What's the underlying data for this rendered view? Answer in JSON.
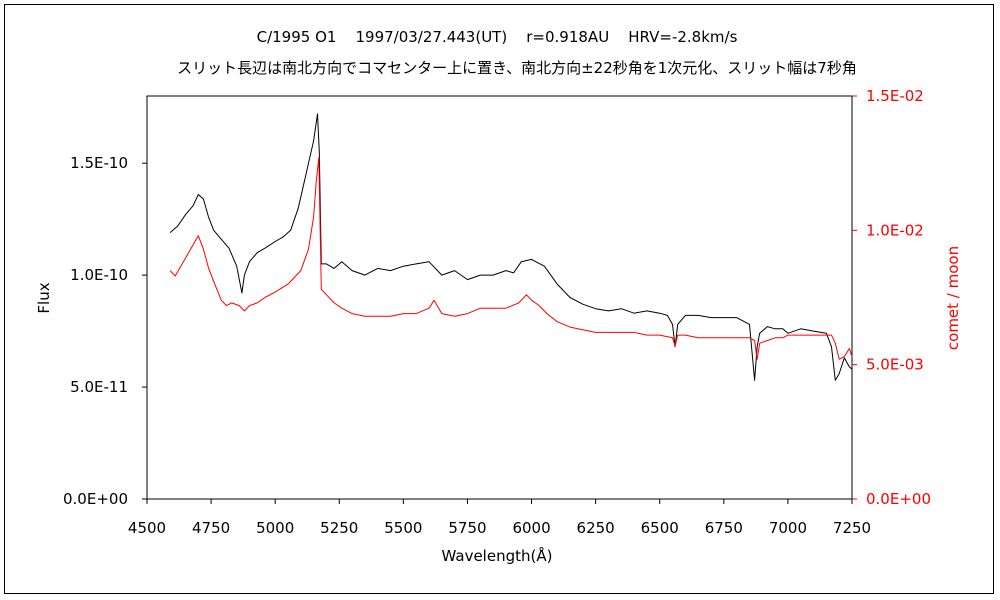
{
  "chart_data": {
    "type": "line",
    "title": "C/1995 O1    1997/03/27.443(UT)    r=0.918AU    HRV=-2.8km/s",
    "subtitle": "スリット長辺は南北方向でコマセンター上に置き、南北方向±22秒角を1次元化、スリット幅は7秒角",
    "xlabel": "Wavelength(Å)",
    "ylabel": "Flux",
    "y2label": "comet / moon",
    "xlim": [
      4500,
      7250
    ],
    "ylim": [
      0,
      1.8e-10
    ],
    "y2lim": [
      0,
      0.015
    ],
    "xticks": [
      "4500",
      "4750",
      "5000",
      "5250",
      "5500",
      "5750",
      "6000",
      "6250",
      "6500",
      "6750",
      "7000",
      "7250"
    ],
    "yticks": [
      "0.0E+00",
      "5.0E-11",
      "1.0E-10",
      "1.5E-10"
    ],
    "y2ticks": [
      "0.0E+00",
      "5.0E-03",
      "1.0E-02",
      "1.5E-02"
    ],
    "grid": false,
    "series": [
      {
        "axis": "left",
        "color": "#000000",
        "x": [
          4590,
          4620,
          4650,
          4680,
          4700,
          4720,
          4740,
          4760,
          4790,
          4820,
          4850,
          4870,
          4880,
          4900,
          4930,
          4960,
          5000,
          5030,
          5060,
          5090,
          5110,
          5130,
          5150,
          5165,
          5172,
          5180,
          5200,
          5230,
          5260,
          5300,
          5350,
          5400,
          5450,
          5500,
          5550,
          5600,
          5650,
          5700,
          5750,
          5800,
          5850,
          5900,
          5930,
          5960,
          6000,
          6050,
          6100,
          6150,
          6200,
          6250,
          6300,
          6350,
          6400,
          6450,
          6500,
          6530,
          6550,
          6560,
          6570,
          6600,
          6650,
          6700,
          6750,
          6800,
          6850,
          6870,
          6880,
          6890,
          6920,
          6950,
          6980,
          7000,
          7050,
          7100,
          7150,
          7170,
          7185,
          7200,
          7220,
          7240,
          7250
        ],
        "y": [
          1.19e-10,
          1.22e-10,
          1.27e-10,
          1.31e-10,
          1.36e-10,
          1.34e-10,
          1.26e-10,
          1.2e-10,
          1.16e-10,
          1.12e-10,
          1.04e-10,
          9.2e-11,
          1e-10,
          1.06e-10,
          1.1e-10,
          1.12e-10,
          1.15e-10,
          1.17e-10,
          1.2e-10,
          1.3e-10,
          1.4e-10,
          1.5e-10,
          1.6e-10,
          1.72e-10,
          1.55e-10,
          1.05e-10,
          1.05e-10,
          1.03e-10,
          1.06e-10,
          1.02e-10,
          1e-10,
          1.03e-10,
          1.02e-10,
          1.04e-10,
          1.05e-10,
          1.06e-10,
          1e-10,
          1.02e-10,
          9.8e-11,
          1e-10,
          1e-10,
          1.02e-10,
          1.01e-10,
          1.06e-10,
          1.07e-10,
          1.04e-10,
          9.6e-11,
          9e-11,
          8.7e-11,
          8.5e-11,
          8.4e-11,
          8.5e-11,
          8.3e-11,
          8.4e-11,
          8.3e-11,
          8.2e-11,
          7.8e-11,
          6.8e-11,
          7.8e-11,
          8.2e-11,
          8.2e-11,
          8.1e-11,
          8.1e-11,
          8.1e-11,
          7.8e-11,
          5.3e-11,
          6.8e-11,
          7.4e-11,
          7.7e-11,
          7.6e-11,
          7.6e-11,
          7.4e-11,
          7.6e-11,
          7.5e-11,
          7.4e-11,
          6.8e-11,
          5.3e-11,
          5.6e-11,
          6.3e-11,
          5.9e-11,
          5.8e-11
        ]
      },
      {
        "axis": "right",
        "color": "#ff0000",
        "x": [
          4590,
          4610,
          4640,
          4670,
          4700,
          4720,
          4740,
          4760,
          4790,
          4810,
          4830,
          4860,
          4880,
          4900,
          4930,
          4960,
          5000,
          5050,
          5100,
          5130,
          5150,
          5160,
          5170,
          5180,
          5200,
          5230,
          5260,
          5300,
          5350,
          5400,
          5450,
          5500,
          5550,
          5600,
          5620,
          5650,
          5700,
          5750,
          5800,
          5850,
          5900,
          5950,
          5980,
          6000,
          6030,
          6060,
          6100,
          6150,
          6200,
          6250,
          6300,
          6350,
          6400,
          6450,
          6500,
          6550,
          6560,
          6570,
          6600,
          6650,
          6700,
          6750,
          6800,
          6850,
          6870,
          6880,
          6890,
          6920,
          6950,
          6980,
          7000,
          7050,
          7100,
          7150,
          7170,
          7185,
          7200,
          7220,
          7240,
          7250
        ],
        "y": [
          0.0085,
          0.0083,
          0.0088,
          0.0093,
          0.0098,
          0.0093,
          0.0086,
          0.0081,
          0.0074,
          0.0072,
          0.0073,
          0.0072,
          0.007,
          0.0072,
          0.0073,
          0.0075,
          0.0077,
          0.008,
          0.0085,
          0.0093,
          0.0105,
          0.0118,
          0.0127,
          0.0078,
          0.0076,
          0.0073,
          0.0071,
          0.0069,
          0.0068,
          0.0068,
          0.0068,
          0.0069,
          0.0069,
          0.0071,
          0.0074,
          0.0069,
          0.0068,
          0.0069,
          0.0071,
          0.0071,
          0.0071,
          0.0073,
          0.0076,
          0.0074,
          0.0072,
          0.0069,
          0.0066,
          0.0064,
          0.0063,
          0.0062,
          0.0062,
          0.0062,
          0.0062,
          0.0061,
          0.0061,
          0.006,
          0.0057,
          0.0061,
          0.0061,
          0.006,
          0.006,
          0.006,
          0.006,
          0.006,
          0.0059,
          0.0052,
          0.0058,
          0.0059,
          0.006,
          0.006,
          0.0061,
          0.0061,
          0.0061,
          0.0061,
          0.0061,
          0.0058,
          0.0052,
          0.0053,
          0.0056,
          0.0053
        ]
      }
    ]
  }
}
